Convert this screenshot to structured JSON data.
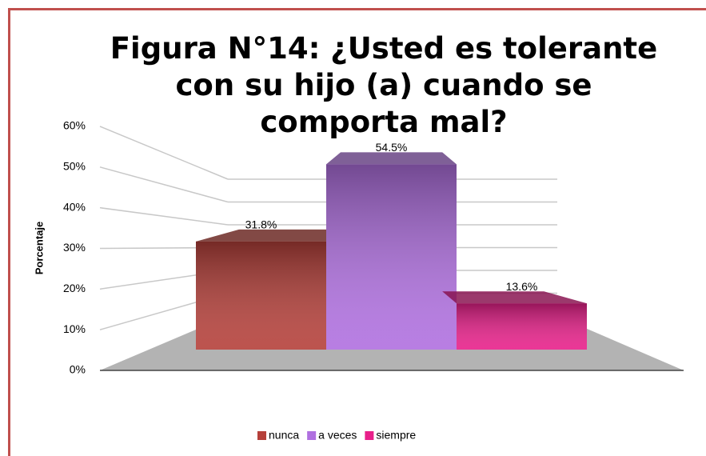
{
  "chart_data": {
    "type": "bar3d",
    "title": "Figura N°14: ¿Usted es tolerante con su hijo (a) cuando se comporta mal?",
    "y_label": "Porcentaje",
    "series": [
      {
        "name": "nunca",
        "color": "#b5403a",
        "values": [
          31.8
        ],
        "value_labels": [
          "31.8%"
        ]
      },
      {
        "name": "a veces",
        "color": "#b070e0",
        "values": [
          54.5
        ],
        "value_labels": [
          "54.5%"
        ]
      },
      {
        "name": "siempre",
        "color": "#e8208a",
        "values": [
          13.6
        ],
        "value_labels": [
          "13.6%"
        ]
      }
    ],
    "ylim": [
      0,
      60
    ],
    "yticks": [
      {
        "value": 0,
        "label": "0%"
      },
      {
        "value": 10,
        "label": "10%"
      },
      {
        "value": 20,
        "label": "20%"
      },
      {
        "value": 30,
        "label": "30%"
      },
      {
        "value": 40,
        "label": "40%"
      },
      {
        "value": 50,
        "label": "50%"
      },
      {
        "value": 60,
        "label": "60%"
      }
    ],
    "grid": true,
    "legend": "bottom"
  }
}
